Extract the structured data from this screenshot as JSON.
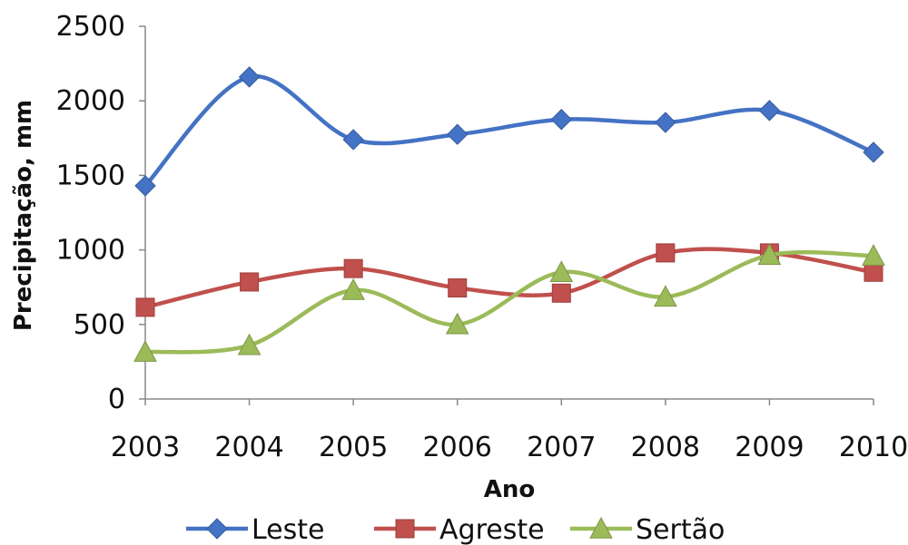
{
  "chart_data": {
    "type": "line",
    "title": "",
    "xlabel": "Ano",
    "ylabel": "Precipitação, mm",
    "categories": [
      "2003",
      "2004",
      "2005",
      "2006",
      "2007",
      "2008",
      "2009",
      "2010"
    ],
    "ylim": [
      0,
      2500
    ],
    "yticks": [
      0,
      500,
      1000,
      1500,
      2000,
      2500
    ],
    "grid": false,
    "legend_position": "bottom",
    "smooth": true,
    "series": [
      {
        "name": "Leste",
        "color": "#4472C4",
        "marker": "diamond",
        "values": [
          1430,
          2160,
          1740,
          1775,
          1875,
          1855,
          1935,
          1655
        ]
      },
      {
        "name": "Agreste",
        "color": "#C0504D",
        "marker": "square",
        "values": [
          615,
          785,
          875,
          745,
          710,
          980,
          980,
          850
        ]
      },
      {
        "name": "Sertão",
        "color": "#9BBB59",
        "marker": "triangle",
        "values": [
          315,
          360,
          730,
          500,
          850,
          685,
          965,
          960
        ]
      }
    ]
  }
}
